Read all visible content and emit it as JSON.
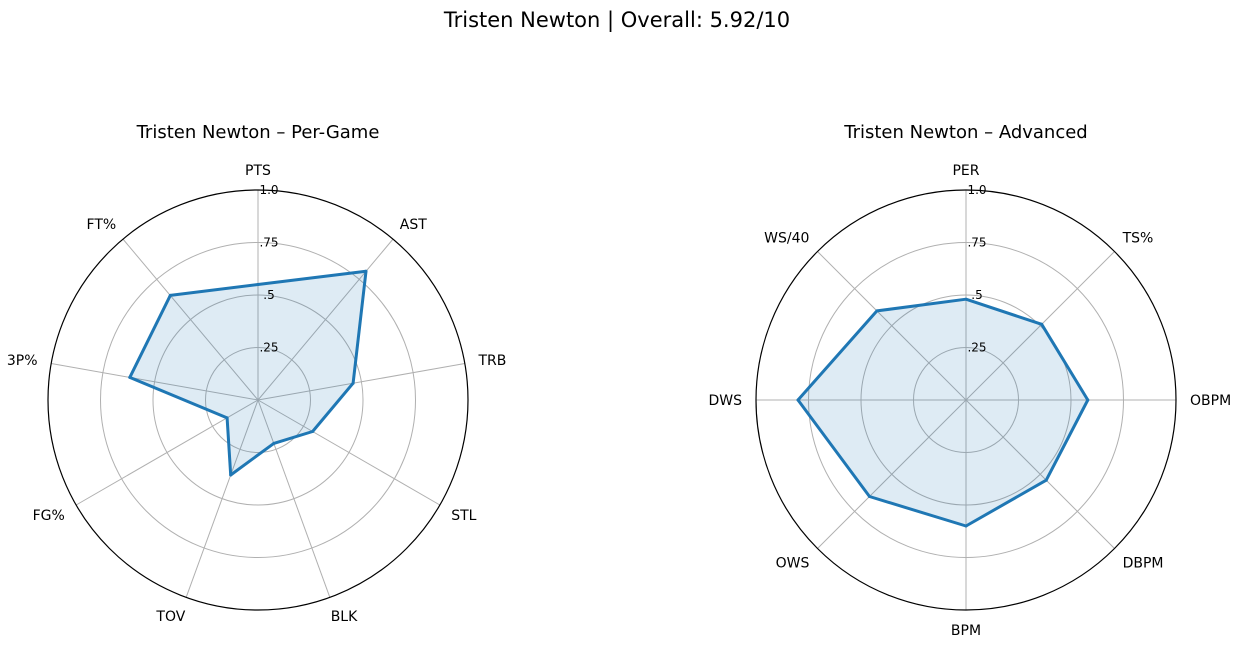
{
  "suptitle": "Tristen Newton | Overall: 5.92/10",
  "chart_data": [
    {
      "type": "radar",
      "title": "Tristen Newton – Per-Game",
      "categories": [
        "PTS",
        "AST",
        "TRB",
        "STL",
        "BLK",
        "TOV",
        "FG%",
        "3P%",
        "FT%"
      ],
      "values": [
        0.55,
        0.8,
        0.46,
        0.3,
        0.22,
        0.38,
        0.17,
        0.62,
        0.65
      ],
      "rlim": [
        0,
        1.0
      ],
      "rticks": [
        0.25,
        0.5,
        0.75,
        1.0
      ],
      "rtick_labels": [
        ".25",
        ".5",
        ".75",
        "1.0"
      ],
      "color": "#1f77b4"
    },
    {
      "type": "radar",
      "title": "Tristen Newton – Advanced",
      "categories": [
        "PER",
        "TS%",
        "OBPM",
        "DBPM",
        "BPM",
        "OWS",
        "DWS",
        "WS/40"
      ],
      "values": [
        0.48,
        0.51,
        0.58,
        0.54,
        0.6,
        0.65,
        0.8,
        0.6
      ],
      "rlim": [
        0,
        1.0
      ],
      "rticks": [
        0.25,
        0.5,
        0.75,
        1.0
      ],
      "rtick_labels": [
        ".25",
        ".5",
        ".75",
        "1.0"
      ],
      "color": "#1f77b4"
    }
  ]
}
